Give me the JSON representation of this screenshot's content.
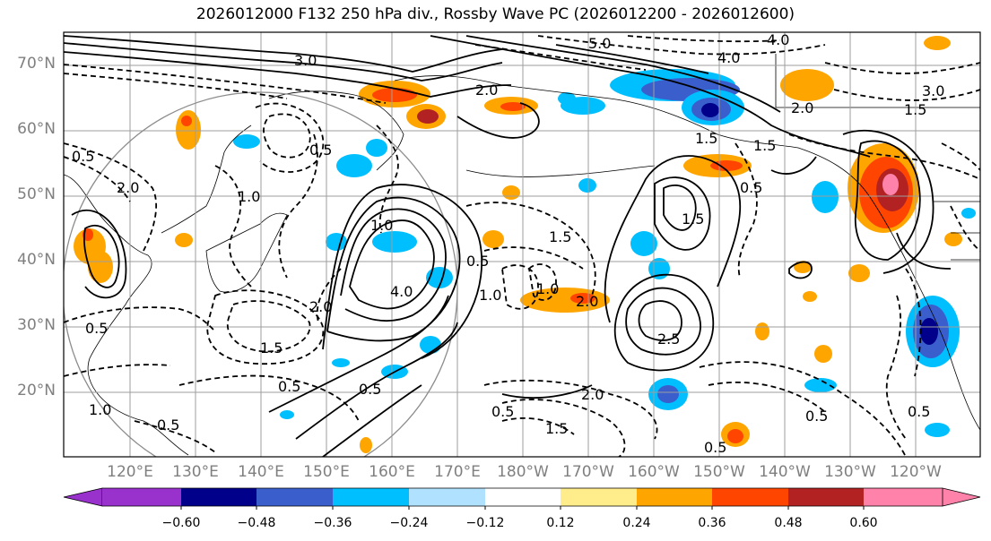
{
  "title": "2026012000 F132 250 hPa div., Rossby Wave PC (2026012200 - 2026012600)",
  "lat_labels": [
    "70°N",
    "60°N",
    "50°N",
    "40°N",
    "30°N",
    "20°N"
  ],
  "lon_labels": [
    "120°E",
    "130°E",
    "140°E",
    "150°E",
    "160°E",
    "170°E",
    "180°W",
    "170°W",
    "160°W",
    "150°W",
    "140°W",
    "130°W",
    "120°W"
  ],
  "contour_labels": [
    "3.0",
    "5.0",
    "4.0",
    "2.0",
    "2.0",
    "1.0",
    "1.5",
    "1.5",
    "1.0",
    "0.5",
    "0.5",
    "1.0",
    "4.0",
    "2.0",
    "1.0",
    "0.5",
    "1.0",
    "1.5",
    "0.5",
    "0.5",
    "0.5",
    "2.0",
    "1.5",
    "1.5",
    "2.0",
    "2.5",
    "0.5",
    "0.5",
    "0.5",
    "0.5",
    "1.5",
    "0.5",
    "3.0",
    "2.0",
    "1.5",
    "0.5",
    "4.0"
  ],
  "colorbar": {
    "ticks": [
      "−0.60",
      "−0.48",
      "−0.36",
      "−0.24",
      "−0.12",
      "0.12",
      "0.24",
      "0.36",
      "0.48",
      "0.60"
    ],
    "colors": [
      "#9932cc",
      "#00008b",
      "#3a5fcd",
      "#00bfff",
      "#b0e2ff",
      "#ffffff",
      "#ffec8b",
      "#ffa500",
      "#ff4500",
      "#b22222",
      "#ff82ab"
    ]
  }
}
